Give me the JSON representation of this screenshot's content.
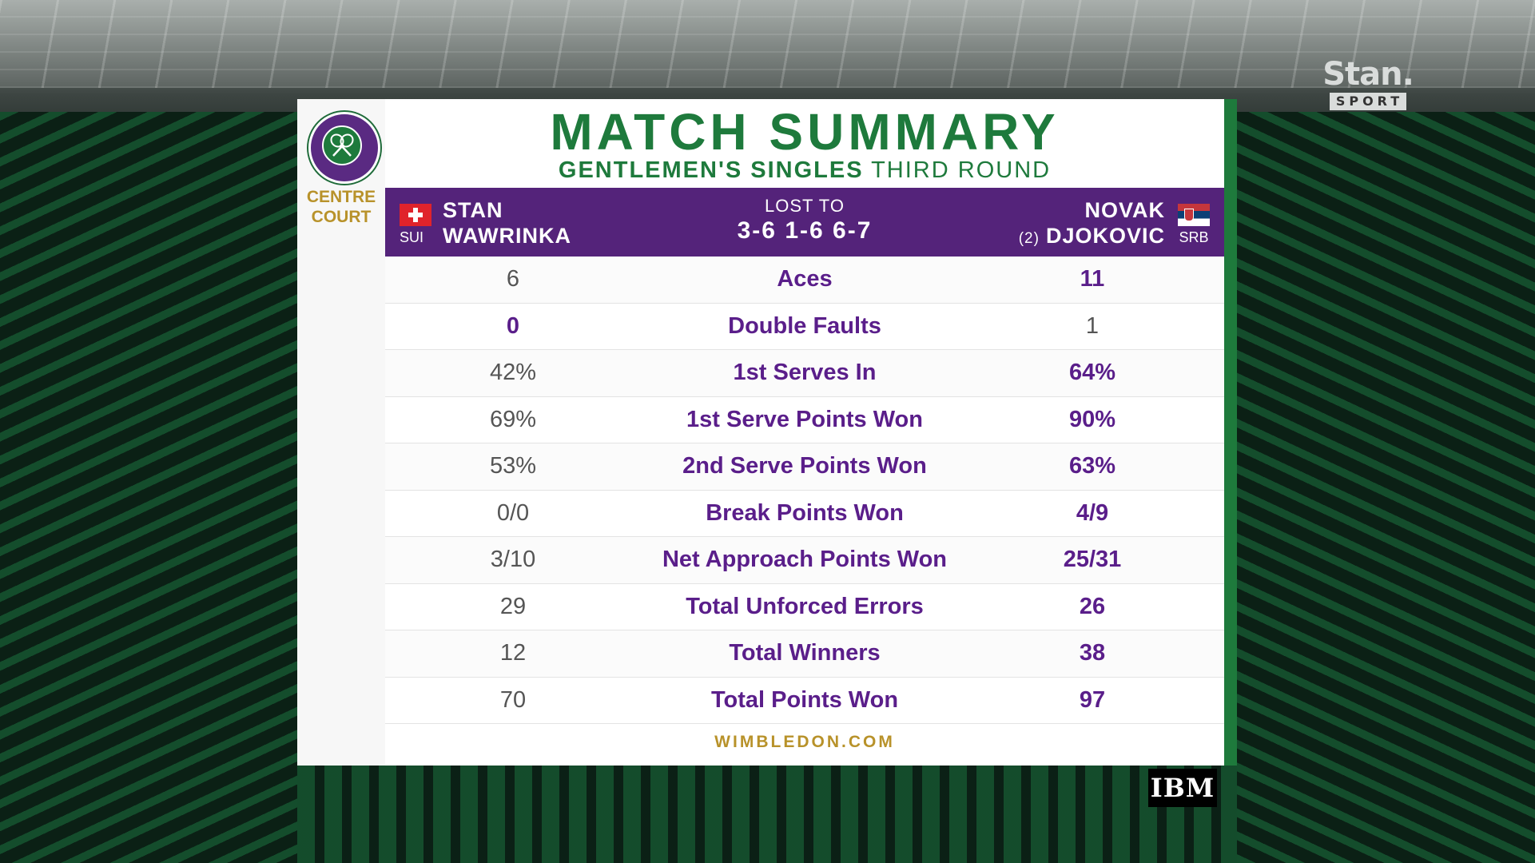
{
  "broadcaster": {
    "name": "Stan.",
    "sub": "SPORT"
  },
  "sponsor": "IBM",
  "venue": {
    "line1": "CENTRE",
    "line2": "COURT"
  },
  "header": {
    "title": "MATCH SUMMARY",
    "subtitle_strong": "GENTLEMEN'S SINGLES",
    "subtitle_rest": "THIRD ROUND"
  },
  "match": {
    "player1": {
      "first": "STAN",
      "last": "WAWRINKA",
      "code": "SUI"
    },
    "player2": {
      "first": "NOVAK",
      "last": "DJOKOVIC",
      "code": "SRB",
      "seed": "(2)"
    },
    "result_label": "LOST TO",
    "score": "3-6 1-6 6-7"
  },
  "stats": [
    {
      "label": "Aces",
      "p1": "6",
      "p2": "11",
      "leader": "p2"
    },
    {
      "label": "Double Faults",
      "p1": "0",
      "p2": "1",
      "leader": "p1"
    },
    {
      "label": "1st Serves In",
      "p1": "42%",
      "p2": "64%",
      "leader": "p2"
    },
    {
      "label": "1st Serve Points Won",
      "p1": "69%",
      "p2": "90%",
      "leader": "p2"
    },
    {
      "label": "2nd Serve Points Won",
      "p1": "53%",
      "p2": "63%",
      "leader": "p2"
    },
    {
      "label": "Break Points Won",
      "p1": "0/0",
      "p2": "4/9",
      "leader": "p2"
    },
    {
      "label": "Net Approach Points Won",
      "p1": "3/10",
      "p2": "25/31",
      "leader": "p2"
    },
    {
      "label": "Total Unforced Errors",
      "p1": "29",
      "p2": "26",
      "leader": "p2"
    },
    {
      "label": "Total Winners",
      "p1": "12",
      "p2": "38",
      "leader": "p2"
    },
    {
      "label": "Total Points Won",
      "p1": "70",
      "p2": "97",
      "leader": "p2"
    }
  ],
  "footer": "WIMBLEDON.COM",
  "colors": {
    "purple": "#54237a",
    "green": "#1e7a3c",
    "gold": "#b8922a"
  }
}
